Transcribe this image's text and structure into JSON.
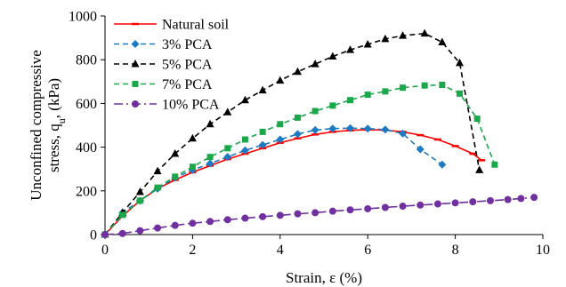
{
  "chart_data": {
    "type": "line",
    "title": "",
    "xlabel": "Strain, ε (%)",
    "ylabel_line1": "Unconfined compressive",
    "ylabel_line2_prefix": "stress,  q",
    "ylabel_line2_sub": "u",
    "ylabel_line2_suffix": ", (kPa)",
    "xlim": [
      0,
      10
    ],
    "ylim": [
      0,
      1000
    ],
    "x_ticks": [
      0,
      2,
      4,
      6,
      8,
      10
    ],
    "y_ticks": [
      0,
      200,
      400,
      600,
      800,
      1000
    ],
    "x_tick_labels": [
      "0",
      "2",
      "4",
      "6",
      "8",
      "10"
    ],
    "y_tick_labels": [
      "0",
      "200",
      "400",
      "600",
      "800",
      "1000"
    ],
    "grid": false,
    "legend_position": "top-left",
    "series": [
      {
        "name": "Natural soil",
        "color": "#ff0000",
        "dash": "solid",
        "marker": "dash",
        "points": [
          [
            0,
            0
          ],
          [
            0.4,
            85
          ],
          [
            0.8,
            155
          ],
          [
            1.2,
            210
          ],
          [
            1.6,
            250
          ],
          [
            2.0,
            285
          ],
          [
            2.4,
            315
          ],
          [
            2.8,
            345
          ],
          [
            3.2,
            370
          ],
          [
            3.6,
            395
          ],
          [
            4.0,
            420
          ],
          [
            4.4,
            440
          ],
          [
            4.8,
            458
          ],
          [
            5.2,
            470
          ],
          [
            5.6,
            477
          ],
          [
            6.0,
            480
          ],
          [
            6.4,
            478
          ],
          [
            6.8,
            470
          ],
          [
            7.2,
            455
          ],
          [
            7.6,
            435
          ],
          [
            8.0,
            405
          ],
          [
            8.4,
            370
          ],
          [
            8.6,
            340
          ]
        ]
      },
      {
        "name": "3% PCA",
        "color": "#1f7ac4",
        "dash": "dash",
        "marker": "diamond",
        "points": [
          [
            0,
            0
          ],
          [
            0.4,
            100
          ],
          [
            0.8,
            155
          ],
          [
            1.2,
            210
          ],
          [
            1.6,
            260
          ],
          [
            2.0,
            295
          ],
          [
            2.4,
            325
          ],
          [
            2.8,
            355
          ],
          [
            3.2,
            385
          ],
          [
            3.6,
            410
          ],
          [
            4.0,
            435
          ],
          [
            4.4,
            460
          ],
          [
            4.8,
            478
          ],
          [
            5.2,
            485
          ],
          [
            5.6,
            487
          ],
          [
            6.0,
            485
          ],
          [
            6.4,
            480
          ],
          [
            6.8,
            462
          ],
          [
            7.2,
            390
          ],
          [
            7.7,
            320
          ]
        ]
      },
      {
        "name": "5% PCA",
        "color": "#000000",
        "dash": "dash",
        "marker": "triangle",
        "points": [
          [
            0,
            0
          ],
          [
            0.4,
            100
          ],
          [
            0.8,
            195
          ],
          [
            1.2,
            290
          ],
          [
            1.6,
            370
          ],
          [
            2.0,
            440
          ],
          [
            2.4,
            505
          ],
          [
            2.8,
            560
          ],
          [
            3.2,
            615
          ],
          [
            3.6,
            660
          ],
          [
            4.0,
            705
          ],
          [
            4.4,
            745
          ],
          [
            4.8,
            780
          ],
          [
            5.2,
            815
          ],
          [
            5.6,
            845
          ],
          [
            6.0,
            870
          ],
          [
            6.4,
            895
          ],
          [
            6.8,
            910
          ],
          [
            7.3,
            920
          ],
          [
            7.7,
            880
          ],
          [
            8.1,
            785
          ],
          [
            8.55,
            295
          ]
        ]
      },
      {
        "name": "7% PCA",
        "color": "#1aa84a",
        "dash": "dash",
        "marker": "square",
        "points": [
          [
            0,
            0
          ],
          [
            0.4,
            90
          ],
          [
            0.8,
            155
          ],
          [
            1.2,
            215
          ],
          [
            1.6,
            265
          ],
          [
            2.0,
            310
          ],
          [
            2.4,
            355
          ],
          [
            2.8,
            395
          ],
          [
            3.2,
            435
          ],
          [
            3.6,
            470
          ],
          [
            4.0,
            505
          ],
          [
            4.4,
            535
          ],
          [
            4.8,
            565
          ],
          [
            5.2,
            590
          ],
          [
            5.6,
            615
          ],
          [
            6.0,
            640
          ],
          [
            6.4,
            655
          ],
          [
            6.8,
            672
          ],
          [
            7.3,
            682
          ],
          [
            7.7,
            685
          ],
          [
            8.1,
            645
          ],
          [
            8.5,
            530
          ],
          [
            8.9,
            320
          ]
        ]
      },
      {
        "name": "10% PCA",
        "color": "#7030a0",
        "dash": "dashdot",
        "marker": "circle",
        "points": [
          [
            0,
            0
          ],
          [
            0.4,
            5
          ],
          [
            0.8,
            18
          ],
          [
            1.2,
            30
          ],
          [
            1.6,
            42
          ],
          [
            2.0,
            52
          ],
          [
            2.4,
            60
          ],
          [
            2.8,
            68
          ],
          [
            3.2,
            75
          ],
          [
            3.6,
            82
          ],
          [
            4.0,
            88
          ],
          [
            4.4,
            95
          ],
          [
            4.8,
            100
          ],
          [
            5.2,
            107
          ],
          [
            5.6,
            113
          ],
          [
            6.0,
            118
          ],
          [
            6.4,
            124
          ],
          [
            6.8,
            130
          ],
          [
            7.2,
            135
          ],
          [
            7.6,
            140
          ],
          [
            8.0,
            145
          ],
          [
            8.4,
            150
          ],
          [
            8.8,
            155
          ],
          [
            9.2,
            160
          ],
          [
            9.5,
            165
          ],
          [
            9.8,
            170
          ]
        ]
      }
    ]
  }
}
